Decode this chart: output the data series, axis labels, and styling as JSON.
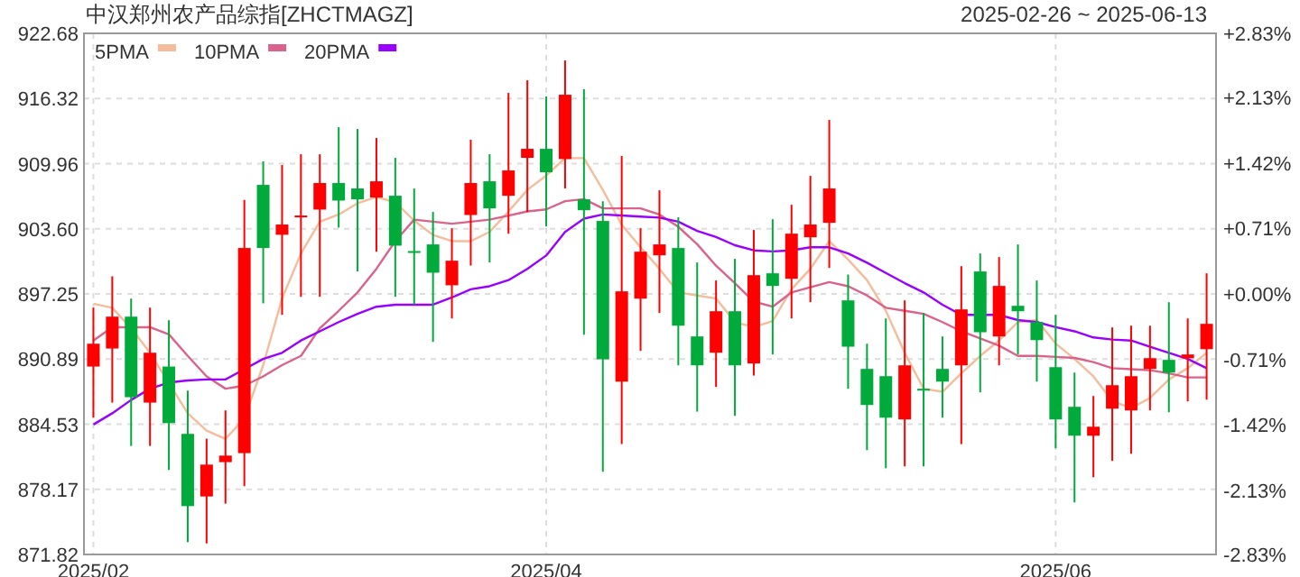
{
  "chart_data": {
    "type": "candlestick",
    "title": "中汉郑州农产品综指[ZHCTMAGZ]",
    "subtitle": "2025-02-26 ~ 2025-06-13",
    "categories": [
      "2025/02",
      null,
      null,
      null,
      null,
      null,
      null,
      null,
      null,
      null,
      null,
      null,
      null,
      null,
      null,
      null,
      null,
      null,
      null,
      null,
      null,
      null,
      null,
      null,
      "2025/04",
      null,
      null,
      null,
      null,
      null,
      null,
      null,
      null,
      null,
      null,
      null,
      null,
      null,
      null,
      null,
      null,
      null,
      null,
      null,
      null,
      null,
      null,
      null,
      null,
      null,
      null,
      "2025/06",
      null,
      null,
      null,
      null,
      null,
      null,
      null,
      null
    ],
    "ohlc": [
      [
        890.16,
        895.91,
        885.17,
        892.39
      ],
      [
        891.92,
        898.97,
        886.64,
        895.03
      ],
      [
        895.03,
        896.79,
        882.41,
        887.17
      ],
      [
        886.64,
        895.91,
        882.41,
        891.51
      ],
      [
        890.16,
        894.68,
        880.07,
        884.64
      ],
      [
        883.59,
        887.81,
        873.02,
        876.54
      ],
      [
        877.48,
        883.12,
        872.9,
        880.59
      ],
      [
        880.83,
        885.88,
        876.78,
        881.47
      ],
      [
        881.71,
        906.42,
        878.48,
        901.73
      ],
      [
        907.89,
        910.18,
        896.33,
        901.73
      ],
      [
        903.02,
        909.83,
        895.21,
        904.02
      ],
      [
        904.78,
        910.88,
        896.97,
        904.9
      ],
      [
        905.48,
        910.88,
        896.97,
        908.07
      ],
      [
        908.07,
        913.52,
        903.72,
        906.36
      ],
      [
        907.54,
        913.35,
        899.44,
        906.48
      ],
      [
        906.66,
        912.47,
        901.37,
        908.24
      ],
      [
        906.83,
        910.53,
        896.97,
        901.96
      ],
      [
        901.43,
        907.54,
        896.21,
        901.31
      ],
      [
        902.08,
        905.25,
        892.57,
        899.32
      ],
      [
        898.09,
        903.66,
        894.86,
        900.49
      ],
      [
        904.95,
        912.29,
        900.02,
        908.07
      ],
      [
        908.24,
        910.88,
        900.32,
        905.6
      ],
      [
        906.83,
        916.87,
        903.13,
        909.3
      ],
      [
        910.53,
        918.1,
        905.25,
        911.41
      ],
      [
        911.41,
        916.52,
        903.84,
        909.12
      ],
      [
        910.41,
        920.04,
        907.54,
        916.69
      ],
      [
        906.48,
        917.22,
        893.27,
        905.42
      ],
      [
        904.37,
        906.3,
        879.89,
        890.87
      ],
      [
        888.69,
        910.71,
        882.59,
        897.5
      ],
      [
        896.79,
        903.66,
        891.69,
        901.37
      ],
      [
        901.02,
        907.36,
        895.39,
        902.08
      ],
      [
        901.73,
        904.72,
        890.28,
        894.15
      ],
      [
        893.1,
        900.32,
        885.76,
        890.28
      ],
      [
        891.51,
        898.56,
        888.17,
        895.56
      ],
      [
        895.56,
        900.67,
        885.35,
        890.28
      ],
      [
        890.46,
        903.49,
        889.28,
        899.08
      ],
      [
        899.26,
        904.54,
        891.34,
        898.03
      ],
      [
        898.73,
        905.95,
        894.86,
        903.13
      ],
      [
        902.78,
        908.77,
        896.44,
        904.02
      ],
      [
        904.19,
        914.23,
        899.79,
        907.54
      ],
      [
        896.62,
        899.14,
        887.99,
        892.1
      ],
      [
        889.93,
        892.39,
        882.0,
        886.41
      ],
      [
        889.22,
        894.86,
        880.24,
        885.17
      ],
      [
        885.0,
        896.62,
        880.42,
        890.28
      ],
      [
        887.99,
        895.39,
        880.42,
        887.87
      ],
      [
        889.93,
        893.1,
        885.17,
        888.69
      ],
      [
        890.28,
        899.96,
        882.59,
        895.74
      ],
      [
        899.44,
        901.2,
        887.64,
        893.51
      ],
      [
        893.1,
        900.85,
        890.28,
        898.03
      ],
      [
        896.09,
        902.08,
        891.34,
        895.56
      ],
      [
        894.51,
        898.56,
        888.69,
        892.74
      ],
      [
        890.1,
        895.21,
        882.18,
        885.0
      ],
      [
        886.23,
        889.57,
        876.9,
        883.41
      ],
      [
        883.41,
        887.29,
        879.36,
        884.29
      ],
      [
        886.05,
        893.98,
        880.95,
        888.34
      ],
      [
        885.88,
        894.15,
        881.65,
        889.22
      ],
      [
        889.93,
        894.15,
        885.88,
        890.98
      ],
      [
        890.81,
        896.44,
        885.7,
        889.57
      ],
      [
        890.98,
        894.86,
        886.76,
        891.34
      ],
      [
        891.86,
        899.26,
        886.93,
        894.33
      ]
    ],
    "colors": [
      "#ff0000",
      "#ff0000",
      "#00aa3b",
      "#ff0000",
      "#00aa3b",
      "#00aa3b",
      "#ff0000",
      "#ff0000",
      "#ff0000",
      "#00aa3b",
      "#ff0000",
      "#ff0000",
      "#ff0000",
      "#00aa3b",
      "#00aa3b",
      "#ff0000",
      "#00aa3b",
      "#00aa3b",
      "#00aa3b",
      "#ff0000",
      "#ff0000",
      "#00aa3b",
      "#ff0000",
      "#ff0000",
      "#00aa3b",
      "#ff0000",
      "#00aa3b",
      "#00aa3b",
      "#ff0000",
      "#ff0000",
      "#ff0000",
      "#00aa3b",
      "#00aa3b",
      "#ff0000",
      "#00aa3b",
      "#ff0000",
      "#00aa3b",
      "#ff0000",
      "#ff0000",
      "#ff0000",
      "#00aa3b",
      "#00aa3b",
      "#00aa3b",
      "#ff0000",
      "#00aa3b",
      "#00aa3b",
      "#ff0000",
      "#00aa3b",
      "#ff0000",
      "#00aa3b",
      "#00aa3b",
      "#00aa3b",
      "#00aa3b",
      "#ff0000",
      "#ff0000",
      "#ff0000",
      "#ff0000",
      "#00aa3b",
      "#ff0000",
      "#ff0000"
    ],
    "series": [
      {
        "name": "5PMA",
        "type": "line",
        "color": "#f5bc9c",
        "values": [
          896.3,
          895.9,
          893.9,
          891.5,
          null,
          885.6,
          883.9,
          883.1,
          885.1,
          890.3,
          896.8,
          901.2,
          904.3,
          905.0,
          906.1,
          906.7,
          906.2,
          904.4,
          903.0,
          902.4,
          902.4,
          903.3,
          905.3,
          907.4,
          908.8,
          910.5,
          910.5,
          907.4,
          904.0,
          901.8,
          899.7,
          897.4,
          897.1,
          896.8,
          894.5,
          894.0,
          894.6,
          897.7,
          899.7,
          902.4,
          900.6,
          898.6,
          895.6,
          891.5,
          888.0,
          887.7,
          889.5,
          891.2,
          892.7,
          894.5,
          894.7,
          892.4,
          890.9,
          889.2,
          886.8,
          886.1,
          887.1,
          888.9,
          890.0,
          891.5
        ]
      },
      {
        "name": "10PMA",
        "type": "line",
        "color": "#d9638a",
        "values": [
          892.7,
          894.0,
          894.0,
          894.0,
          893.3,
          891.2,
          889.2,
          888.0,
          888.3,
          889.2,
          890.3,
          891.2,
          893.9,
          895.6,
          897.4,
          899.7,
          902.4,
          904.5,
          904.3,
          904.1,
          904.3,
          904.5,
          904.9,
          905.3,
          905.5,
          906.3,
          906.5,
          905.6,
          905.6,
          905.6,
          905.0,
          903.8,
          902.1,
          900.0,
          898.3,
          896.5,
          896.0,
          897.4,
          897.9,
          898.4,
          898.0,
          897.1,
          895.9,
          895.6,
          895.3,
          894.5,
          893.6,
          892.9,
          892.2,
          891.2,
          891.2,
          891.1,
          891.0,
          890.6,
          890.0,
          889.9,
          889.8,
          889.5,
          889.1,
          889.1
        ]
      },
      {
        "name": "20PMA",
        "type": "line",
        "color": "#9900ff",
        "values": [
          884.5,
          885.6,
          886.9,
          888.0,
          888.6,
          888.8,
          888.9,
          888.9,
          889.9,
          890.9,
          891.5,
          892.7,
          893.6,
          894.5,
          895.3,
          896.0,
          896.2,
          896.2,
          896.2,
          896.9,
          897.7,
          898.0,
          898.6,
          899.7,
          901.0,
          903.3,
          904.6,
          905.0,
          904.9,
          904.8,
          904.7,
          904.3,
          903.4,
          902.8,
          902.0,
          901.5,
          901.4,
          901.5,
          901.8,
          901.8,
          901.2,
          900.3,
          899.3,
          898.3,
          897.4,
          896.2,
          895.2,
          895.2,
          895.2,
          894.7,
          894.5,
          894.0,
          893.6,
          893.0,
          892.8,
          892.7,
          892.1,
          891.5,
          890.9,
          890.0
        ]
      }
    ],
    "ylim": [
      871.82,
      922.68
    ],
    "yticks": [
      871.82,
      878.17,
      884.53,
      890.89,
      897.25,
      {
        "value": 903.6,
        "label": "903.60"
      },
      909.96,
      916.32,
      922.68
    ],
    "y2lim": [
      -2.83,
      2.83
    ],
    "y2ticks": [
      {
        "value": 2.83,
        "label": "+2.83%"
      },
      {
        "value": 2.13,
        "label": "+2.13%"
      },
      {
        "value": 1.42,
        "label": "+1.42%"
      },
      {
        "value": 0.71,
        "label": "+0.71%"
      },
      {
        "value": 0,
        "label": "+0.00%"
      },
      {
        "value": -0.71,
        "label": "-0.71%"
      },
      {
        "value": -1.42,
        "label": "-1.42%"
      },
      {
        "value": -2.13,
        "label": "-2.13%"
      },
      {
        "value": -2.83,
        "label": "-2.83%"
      }
    ],
    "grid": true,
    "legend": "top left"
  }
}
